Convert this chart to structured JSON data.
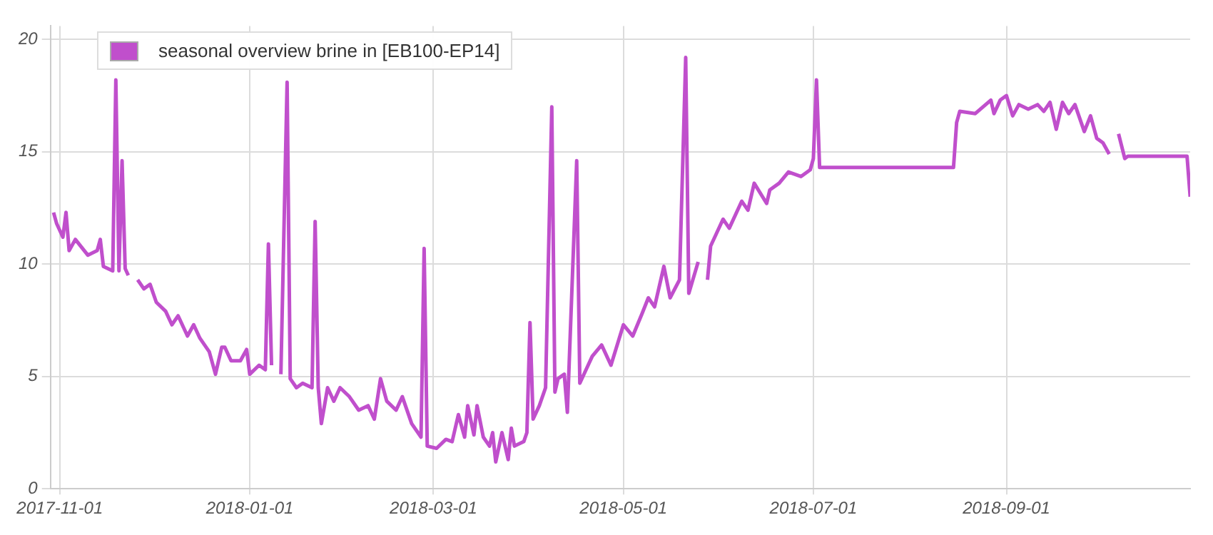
{
  "chart_data": {
    "type": "line",
    "legend": "top left",
    "grid": true,
    "marker": "none",
    "line_style": "solid",
    "xlim": [
      "2017-10-29",
      "2018-10-30"
    ],
    "xticks": [
      "2017-11-01",
      "2018-01-01",
      "2018-03-01",
      "2018-05-01",
      "2018-07-01",
      "2018-09-01"
    ],
    "ylim": [
      0,
      20.6
    ],
    "yticks": [
      0,
      5,
      10,
      15,
      20
    ],
    "x": [
      "2017-10-30",
      "2017-10-31",
      "2017-11-02",
      "2017-11-03",
      "2017-11-04",
      "2017-11-06",
      "2017-11-10",
      "2017-11-13",
      "2017-11-14",
      "2017-11-15",
      "2017-11-18",
      "2017-11-19",
      "2017-11-20",
      "2017-11-21",
      "2017-11-22",
      "2017-11-23",
      "2017-11-25",
      "2017-11-26",
      "2017-11-28",
      "2017-11-30",
      "2017-12-02",
      "2017-12-05",
      "2017-12-07",
      "2017-12-09",
      "2017-12-12",
      "2017-12-14",
      "2017-12-16",
      "2017-12-19",
      "2017-12-21",
      "2017-12-23",
      "2017-12-24",
      "2017-12-26",
      "2017-12-29",
      "2017-12-31",
      "2018-01-01",
      "2018-01-04",
      "2018-01-06",
      "2018-01-07",
      "2018-01-08",
      "2018-01-10",
      "2018-01-11",
      "2018-01-13",
      "2018-01-14",
      "2018-01-16",
      "2018-01-18",
      "2018-01-21",
      "2018-01-22",
      "2018-01-23",
      "2018-01-24",
      "2018-01-26",
      "2018-01-28",
      "2018-01-30",
      "2018-02-02",
      "2018-02-05",
      "2018-02-08",
      "2018-02-10",
      "2018-02-12",
      "2018-02-14",
      "2018-02-17",
      "2018-02-19",
      "2018-02-22",
      "2018-02-25",
      "2018-02-26",
      "2018-02-27",
      "2018-03-02",
      "2018-03-05",
      "2018-03-07",
      "2018-03-09",
      "2018-03-11",
      "2018-03-12",
      "2018-03-14",
      "2018-03-15",
      "2018-03-17",
      "2018-03-19",
      "2018-03-20",
      "2018-03-21",
      "2018-03-23",
      "2018-03-25",
      "2018-03-26",
      "2018-03-27",
      "2018-03-30",
      "2018-03-31",
      "2018-04-01",
      "2018-04-02",
      "2018-04-04",
      "2018-04-06",
      "2018-04-08",
      "2018-04-09",
      "2018-04-10",
      "2018-04-12",
      "2018-04-13",
      "2018-04-16",
      "2018-04-17",
      "2018-04-19",
      "2018-04-21",
      "2018-04-24",
      "2018-04-27",
      "2018-05-01",
      "2018-05-04",
      "2018-05-07",
      "2018-05-09",
      "2018-05-11",
      "2018-05-14",
      "2018-05-16",
      "2018-05-19",
      "2018-05-21",
      "2018-05-22",
      "2018-05-25",
      "2018-05-26",
      "2018-05-28",
      "2018-05-29",
      "2018-06-02",
      "2018-06-04",
      "2018-06-08",
      "2018-06-10",
      "2018-06-12",
      "2018-06-16",
      "2018-06-17",
      "2018-06-20",
      "2018-06-23",
      "2018-06-27",
      "2018-06-30",
      "2018-07-01",
      "2018-07-02",
      "2018-07-03",
      "2018-08-15",
      "2018-08-16",
      "2018-08-17",
      "2018-08-22",
      "2018-08-27",
      "2018-08-28",
      "2018-08-30",
      "2018-09-01",
      "2018-09-03",
      "2018-09-05",
      "2018-09-08",
      "2018-09-11",
      "2018-09-13",
      "2018-09-15",
      "2018-09-17",
      "2018-09-19",
      "2018-09-21",
      "2018-09-23",
      "2018-09-26",
      "2018-09-28",
      "2018-09-30",
      "2018-10-02",
      "2018-10-04",
      "2018-10-06",
      "2018-10-07",
      "2018-10-09",
      "2018-10-10",
      "2018-10-29",
      "2018-10-30"
    ],
    "series": [
      {
        "name": "seasonal overview brine in [EB100-EP14]",
        "color": "#c04fcc",
        "values": [
          12.3,
          11.8,
          11.2,
          12.3,
          10.6,
          11.1,
          10.4,
          10.6,
          11.1,
          9.9,
          9.7,
          18.2,
          9.7,
          14.6,
          9.8,
          9.5,
          null,
          9.3,
          8.9,
          9.1,
          8.3,
          7.9,
          7.3,
          7.7,
          6.8,
          7.3,
          6.7,
          6.1,
          5.1,
          6.3,
          6.3,
          5.7,
          5.7,
          6.2,
          5.1,
          5.5,
          5.3,
          10.9,
          5.5,
          null,
          5.1,
          18.1,
          4.9,
          4.5,
          4.7,
          4.5,
          11.9,
          4.5,
          2.9,
          4.5,
          3.9,
          4.5,
          4.1,
          3.5,
          3.7,
          3.1,
          4.9,
          3.9,
          3.5,
          4.1,
          2.9,
          2.3,
          10.7,
          1.9,
          1.8,
          2.2,
          2.1,
          3.3,
          2.3,
          3.7,
          2.4,
          3.7,
          2.3,
          1.9,
          2.5,
          1.2,
          2.5,
          1.3,
          2.7,
          1.9,
          2.1,
          2.5,
          7.4,
          3.1,
          3.7,
          4.5,
          17.0,
          4.3,
          4.9,
          5.1,
          3.4,
          14.6,
          4.7,
          5.3,
          5.9,
          6.4,
          5.5,
          7.3,
          6.8,
          7.8,
          8.5,
          8.1,
          9.9,
          8.5,
          9.3,
          19.2,
          8.7,
          10.1,
          null,
          9.3,
          10.8,
          12.0,
          11.6,
          12.8,
          12.4,
          13.6,
          12.7,
          13.3,
          13.6,
          14.1,
          13.9,
          14.2,
          14.7,
          18.2,
          14.3,
          14.3,
          16.3,
          16.8,
          16.7,
          17.3,
          16.7,
          17.3,
          17.5,
          16.6,
          17.1,
          16.9,
          17.1,
          16.8,
          17.2,
          16.0,
          17.2,
          16.7,
          17.1,
          15.9,
          16.6,
          15.6,
          15.4,
          14.9,
          null,
          15.8,
          14.7,
          14.8,
          14.8,
          13.0
        ]
      }
    ]
  }
}
